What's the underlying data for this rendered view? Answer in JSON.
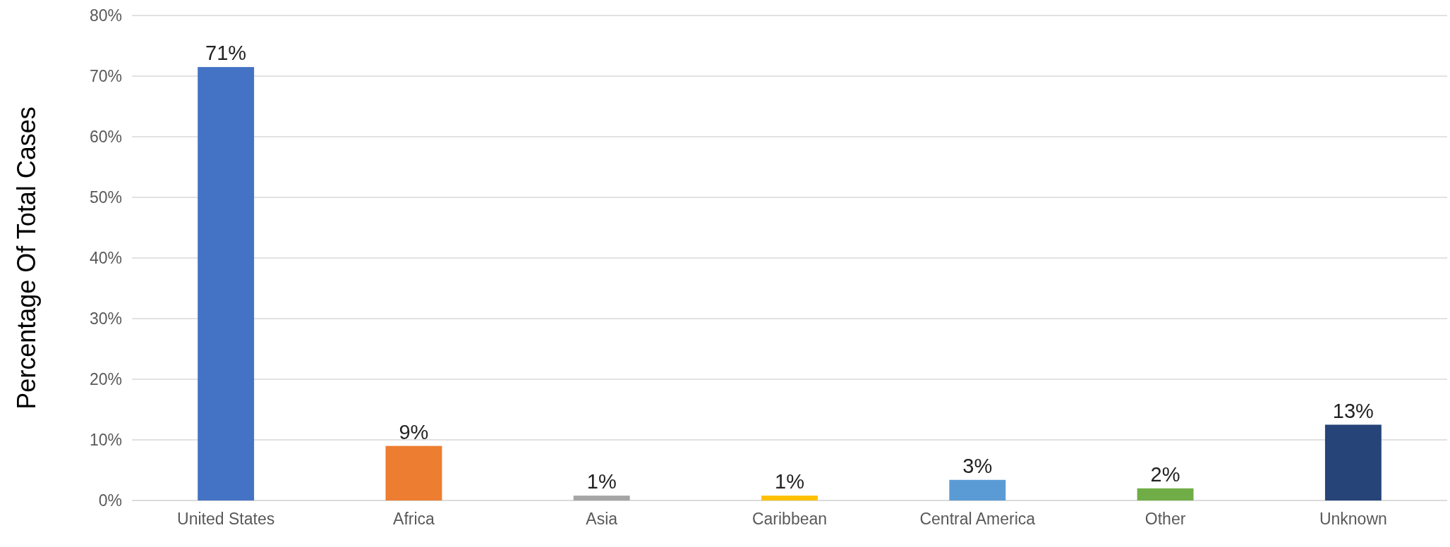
{
  "chart_data": {
    "type": "bar",
    "ylabel": "Percentage Of Total Cases",
    "categories": [
      "United States",
      "Africa",
      "Asia",
      "Caribbean",
      "Central America",
      "Other",
      "Unknown"
    ],
    "values": [
      71.5,
      9,
      0.8,
      0.8,
      3.4,
      2,
      12.5
    ],
    "value_labels": [
      "71%",
      "9%",
      "1%",
      "1%",
      "3%",
      "2%",
      "13%"
    ],
    "colors": [
      "#4472c4",
      "#ed7d31",
      "#a5a5a5",
      "#ffc000",
      "#5b9bd5",
      "#70ad47",
      "#264478"
    ],
    "ylim": [
      0,
      80
    ],
    "yticks": [
      {
        "value": 0,
        "label": "0%"
      },
      {
        "value": 10,
        "label": "10%"
      },
      {
        "value": 20,
        "label": "20%"
      },
      {
        "value": 30,
        "label": "30%"
      },
      {
        "value": 40,
        "label": "40%"
      },
      {
        "value": 50,
        "label": "50%"
      },
      {
        "value": 60,
        "label": "60%"
      },
      {
        "value": 70,
        "label": "70%"
      },
      {
        "value": 80,
        "label": "80%"
      }
    ],
    "grid": "y"
  }
}
